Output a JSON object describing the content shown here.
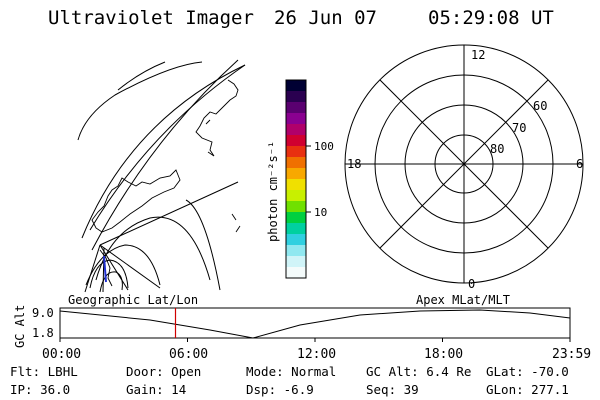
{
  "header": {
    "title": "Ultraviolet Imager",
    "date": "26 Jun 07",
    "time": "05:29:08 UT"
  },
  "left_panel": {
    "label": "Geographic Lat/Lon"
  },
  "colorbar": {
    "unit_label": "photon cm⁻²s⁻¹",
    "ticks": [
      {
        "label": "100",
        "level": 100
      },
      {
        "label": "10",
        "level": 10
      }
    ],
    "colors": [
      "#000033",
      "#2a0050",
      "#5a0070",
      "#8a0090",
      "#b0006a",
      "#d00030",
      "#e83010",
      "#f07000",
      "#f8a800",
      "#f0e000",
      "#c8f000",
      "#70e000",
      "#00d040",
      "#00d0a0",
      "#30d0e0",
      "#90e8f0",
      "#d0f4f8",
      "#f4fbfb"
    ]
  },
  "right_panel": {
    "label": "Apex  MLat/MLT",
    "mlt_labels": {
      "top": "12",
      "left": "18",
      "right": "6",
      "bottom": "0"
    },
    "lat_labels": [
      "80",
      "70",
      "60"
    ]
  },
  "timeline": {
    "y_axis_title": "GC Alt",
    "y_ticks": [
      "9.0",
      "1.8"
    ],
    "x_ticks": [
      "00:00",
      "06:00",
      "12:00",
      "18:00",
      "23:59"
    ],
    "current_marker_color": "#d00000"
  },
  "info": {
    "row1": [
      {
        "key": "Flt:",
        "value": "LBHL"
      },
      {
        "key": "Door:",
        "value": "Open"
      },
      {
        "key": "Mode:",
        "value": "Normal"
      },
      {
        "key": "GC Alt:",
        "value": "6.4 Re"
      },
      {
        "key": "GLat:",
        "value": "-70.0"
      }
    ],
    "row2": [
      {
        "key": "IP:",
        "value": "36.0"
      },
      {
        "key": "Gain:",
        "value": "14"
      },
      {
        "key": "Dsp:",
        "value": "-6.9"
      },
      {
        "key": "Seq:",
        "value": "39"
      },
      {
        "key": "GLon:",
        "value": "277.1"
      }
    ]
  }
}
